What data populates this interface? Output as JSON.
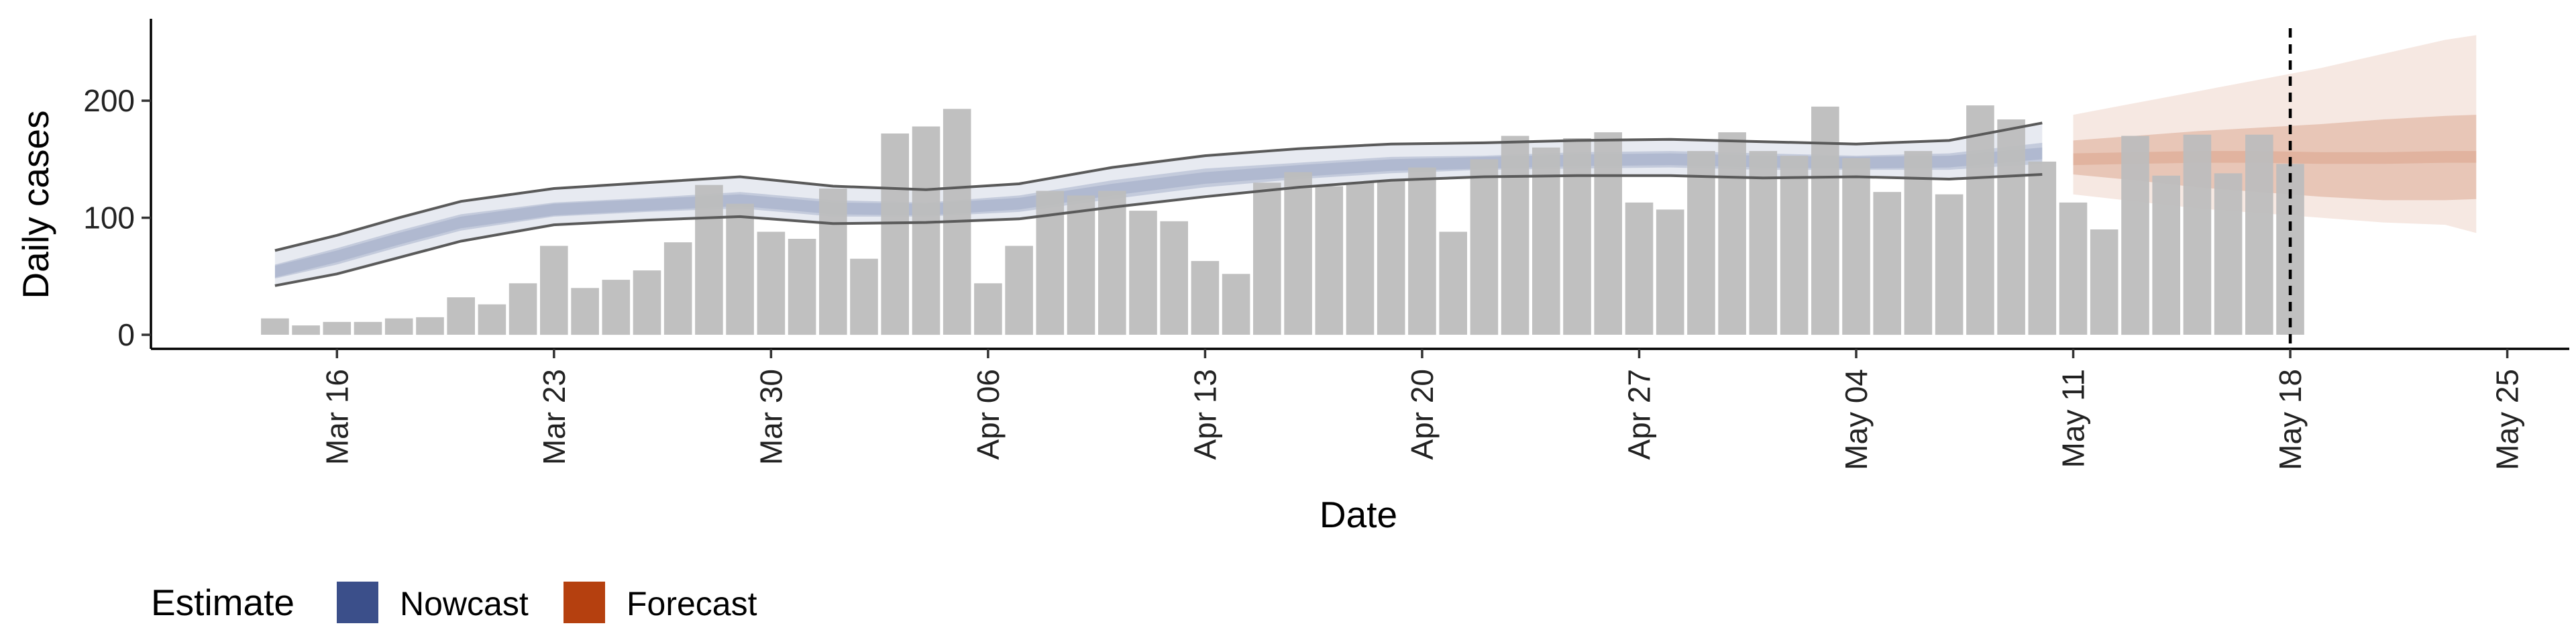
{
  "chart_data": {
    "type": "bar",
    "xlabel": "Date",
    "ylabel": "Daily cases",
    "ylim": [
      -12,
      270
    ],
    "y_ticks": [
      0,
      100,
      200
    ],
    "y_tick_labels": [
      "0",
      "100",
      "200"
    ],
    "x_ticks": [
      "2020-03-16",
      "2020-03-23",
      "2020-03-30",
      "2020-04-06",
      "2020-04-13",
      "2020-04-20",
      "2020-04-27",
      "2020-05-04",
      "2020-05-11",
      "2020-05-18",
      "2020-05-25"
    ],
    "x_tick_labels": [
      "Mar 16",
      "Mar 23",
      "Mar 30",
      "Apr 06",
      "Apr 13",
      "Apr 20",
      "Apr 27",
      "May 04",
      "May 11",
      "May 18",
      "May 25"
    ],
    "x_range": [
      "2020-03-10",
      "2020-05-27"
    ],
    "vline_date": "2020-05-18",
    "bar_color": "#bdbdbd",
    "observed_cases": {
      "start_date": "2020-03-14",
      "values": [
        14,
        8,
        11,
        11,
        14,
        15,
        32,
        26,
        44,
        76,
        40,
        47,
        55,
        79,
        128,
        112,
        88,
        82,
        125,
        65,
        172,
        178,
        193,
        44,
        76,
        123,
        119,
        123,
        106,
        97,
        63,
        52,
        130,
        139,
        127,
        130,
        132,
        143,
        88,
        150,
        170,
        160,
        168,
        173,
        113,
        107,
        157,
        173,
        157,
        153,
        195,
        151,
        122,
        157,
        120,
        196,
        184,
        148,
        113,
        90,
        170,
        136,
        171,
        138,
        171,
        146
      ]
    },
    "nowcast": {
      "color": "#3b4f8a",
      "dates": [
        "2020-03-14",
        "2020-03-16",
        "2020-03-18",
        "2020-03-20",
        "2020-03-23",
        "2020-03-26",
        "2020-03-29",
        "2020-04-01",
        "2020-04-04",
        "2020-04-07",
        "2020-04-10",
        "2020-04-13",
        "2020-04-16",
        "2020-04-19",
        "2020-04-22",
        "2020-04-25",
        "2020-04-28",
        "2020-05-01",
        "2020-05-04",
        "2020-05-07",
        "2020-05-10"
      ],
      "median": [
        54,
        67,
        82,
        96,
        107,
        111,
        115,
        108,
        107,
        112,
        124,
        134,
        140,
        145,
        147,
        149,
        150,
        148,
        147,
        148,
        155
      ],
      "inner_lower": [
        48,
        60,
        75,
        89,
        101,
        105,
        108,
        101,
        101,
        105,
        116,
        126,
        133,
        138,
        141,
        142,
        143,
        141,
        141,
        141,
        146
      ],
      "inner_upper": [
        60,
        74,
        89,
        103,
        113,
        117,
        122,
        115,
        113,
        119,
        132,
        142,
        147,
        152,
        153,
        156,
        157,
        155,
        153,
        155,
        164
      ],
      "outer_lower": [
        42,
        52,
        66,
        80,
        94,
        98,
        101,
        95,
        96,
        99,
        109,
        118,
        126,
        132,
        135,
        136,
        136,
        134,
        135,
        133,
        137
      ],
      "outer_upper": [
        72,
        85,
        100,
        114,
        125,
        130,
        135,
        127,
        124,
        129,
        143,
        153,
        159,
        163,
        164,
        166,
        167,
        165,
        163,
        166,
        181
      ]
    },
    "forecast": {
      "color": "#b5400f",
      "dates": [
        "2020-05-11",
        "2020-05-13",
        "2020-05-15",
        "2020-05-17",
        "2020-05-19",
        "2020-05-21",
        "2020-05-23",
        "2020-05-24"
      ],
      "median": [
        150,
        151,
        152,
        152,
        151,
        151,
        152,
        152
      ],
      "inner_lower": [
        137,
        132,
        126,
        122,
        118,
        115,
        115,
        116
      ],
      "inner_upper": [
        166,
        170,
        174,
        177,
        180,
        184,
        187,
        188
      ],
      "outer_lower": [
        120,
        114,
        108,
        104,
        100,
        96,
        94,
        87
      ],
      "outer_upper": [
        188,
        198,
        208,
        218,
        228,
        240,
        252,
        256
      ]
    }
  },
  "legend": {
    "title": "Estimate",
    "items": [
      {
        "label": "Nowcast",
        "color": "#3b4f8a"
      },
      {
        "label": "Forecast",
        "color": "#b5400f"
      }
    ]
  }
}
